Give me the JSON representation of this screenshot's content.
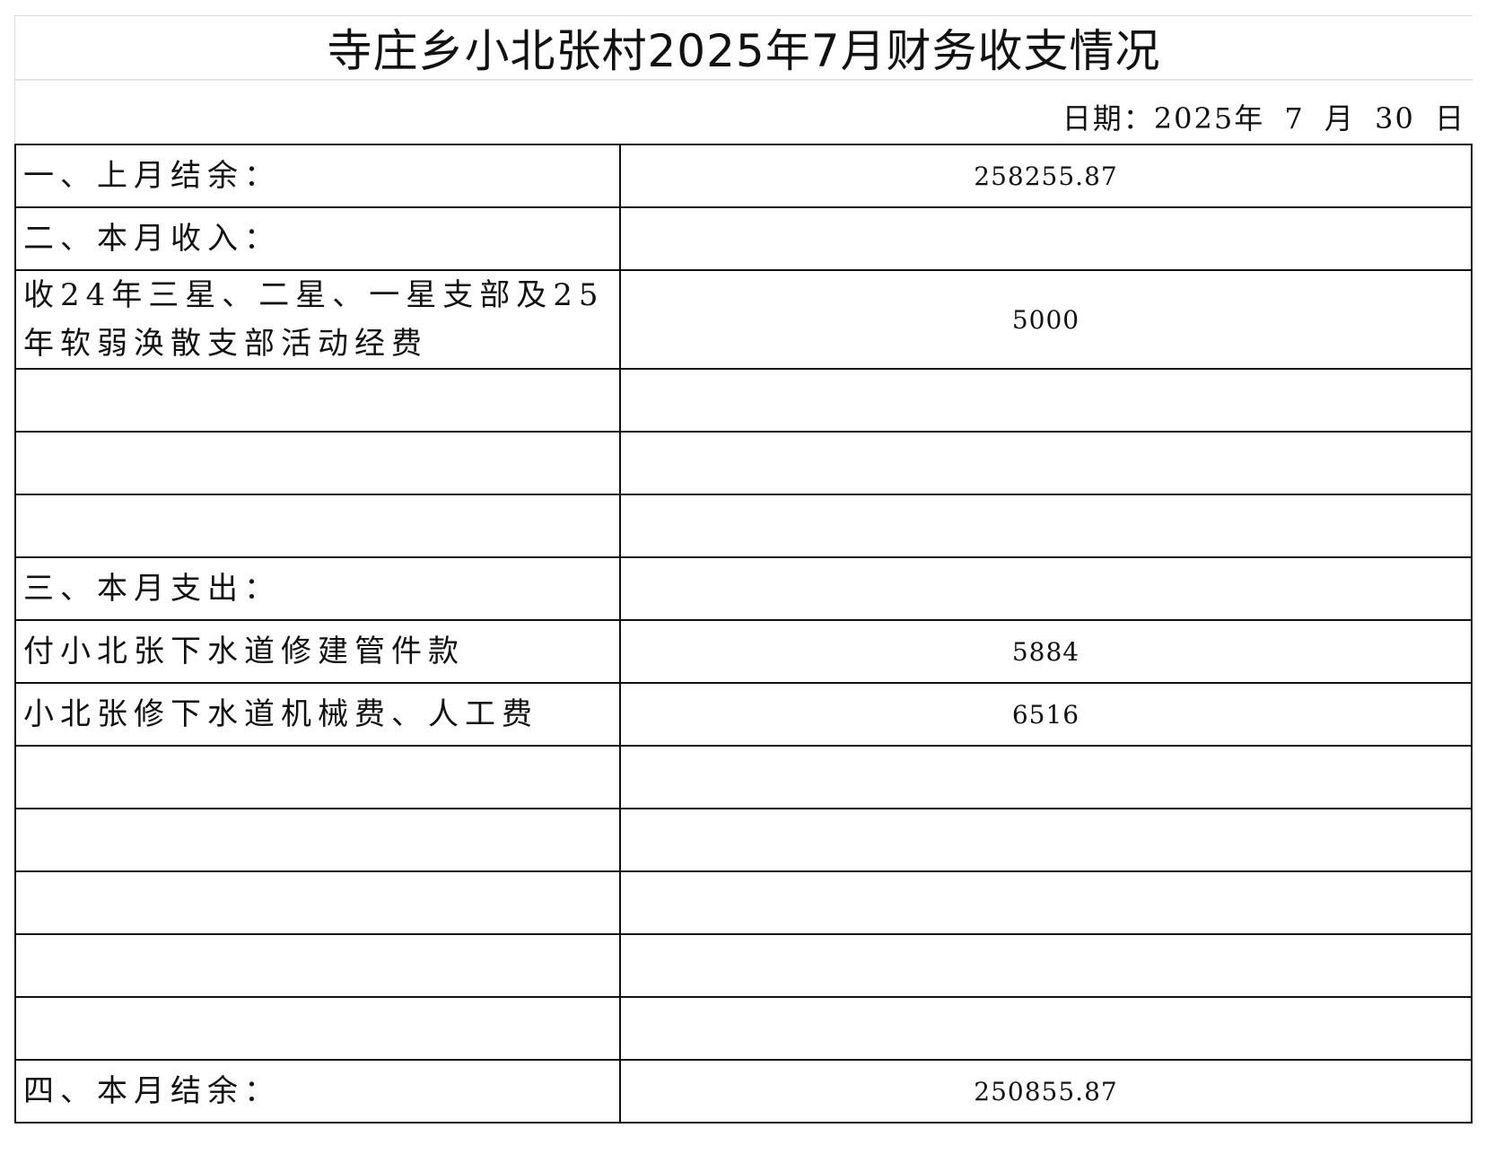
{
  "title": "寺庄乡小北张村2025年7月财务收支情况",
  "date": "日期：2025年 7 月 30 日",
  "rows": [
    {
      "label": "一、上月结余：",
      "value": "258255.87"
    },
    {
      "label": "二、本月收入：",
      "value": ""
    },
    {
      "label": "收24年三星、二星、一星支部及25年软弱涣散支部活动经费",
      "value": "5000"
    },
    {
      "label": "",
      "value": ""
    },
    {
      "label": "",
      "value": ""
    },
    {
      "label": "",
      "value": ""
    },
    {
      "label": "三、本月支出：",
      "value": ""
    },
    {
      "label": "付小北张下水道修建管件款",
      "value": "5884"
    },
    {
      "label": "小北张修下水道机械费、人工费",
      "value": "6516"
    },
    {
      "label": "",
      "value": ""
    },
    {
      "label": "",
      "value": ""
    },
    {
      "label": "",
      "value": ""
    },
    {
      "label": "",
      "value": ""
    },
    {
      "label": "",
      "value": ""
    },
    {
      "label": "四、本月结余：",
      "value": "250855.87"
    }
  ]
}
